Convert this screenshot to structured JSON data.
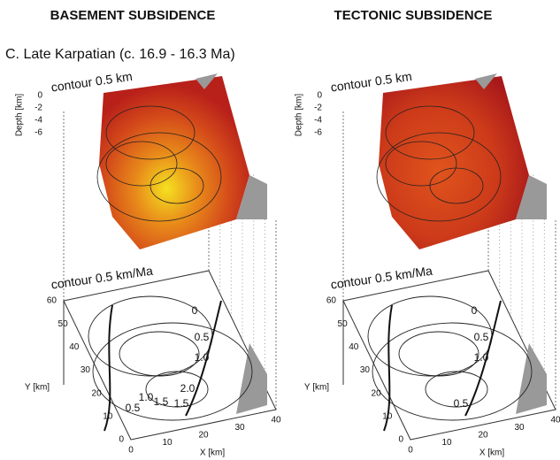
{
  "header": {
    "titles": [
      "BASEMENT SUBSIDENCE",
      "TECTONIC SUBSIDENCE"
    ],
    "caption": "C. Late Karpatian (c. 16.9 - 16.3 Ma)"
  },
  "panels": [
    {
      "top_label": "contour 0.5 km",
      "depth_axis": {
        "label": "Depth [km]",
        "ticks": [
          "0",
          "-2",
          "-4",
          "-6"
        ]
      },
      "bottom_label": "contour 0.5 km/Ma",
      "y_axis": {
        "label": "Y [km]",
        "ticks": [
          "60",
          "50",
          "40",
          "30",
          "20",
          "10",
          "0"
        ]
      },
      "x_axis": {
        "label": "X [km]",
        "ticks": [
          "0",
          "10",
          "20",
          "30",
          "40"
        ]
      },
      "contour_labels": [
        "0",
        "0.5",
        "1.0",
        "1.5",
        "2.0",
        "0.5",
        "1.0",
        "1.5"
      ]
    },
    {
      "top_label": "contour 0.5 km",
      "depth_axis": {
        "label": "Depth [km]",
        "ticks": [
          "0",
          "-2",
          "-4",
          "-6"
        ]
      },
      "bottom_label": "contour 0.5 km/Ma",
      "y_axis": {
        "label": "Y [km]",
        "ticks": [
          "60",
          "50",
          "40",
          "30",
          "20",
          "10",
          "0"
        ]
      },
      "x_axis": {
        "label": "X [km]",
        "ticks": [
          "0",
          "10",
          "20",
          "30",
          "40"
        ]
      },
      "contour_labels": [
        "0",
        "0.5",
        "1.0",
        "0.5"
      ]
    }
  ]
}
